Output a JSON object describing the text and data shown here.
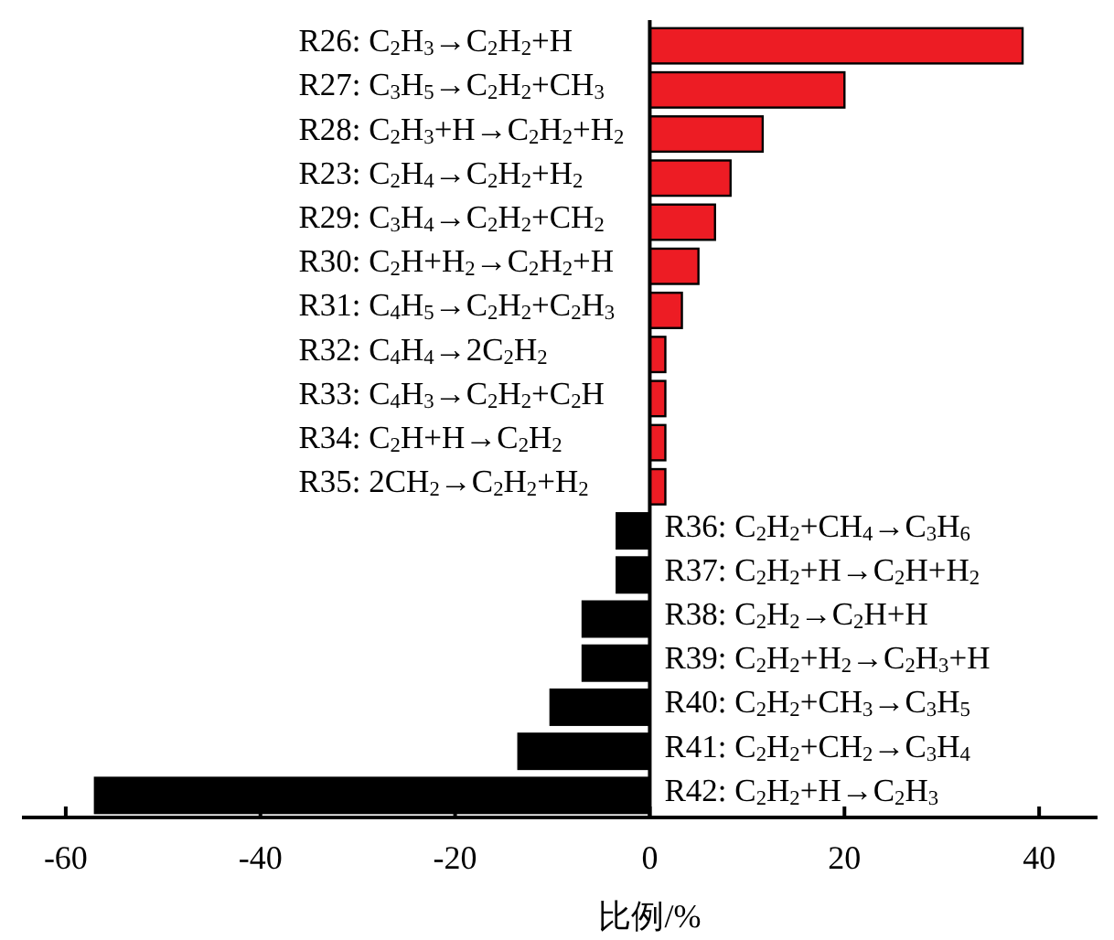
{
  "chart_data": {
    "type": "bar",
    "orientation": "horizontal",
    "xlabel": "比例/%",
    "categories": [
      "R26: C$_{2}$H$_{3}$→C$_{2}$H$_{2}$+H",
      "R27: C$_{3}$H$_{5}$→C$_{2}$H$_{2}$+CH$_{3}$",
      "R28: C$_{2}$H$_{3}$+H→C$_{2}$H$_{2}$+H$_{2}$",
      "R23: C$_{2}$H$_{4}$→C$_{2}$H$_{2}$+H$_{2}$",
      "R29: C$_{3}$H$_{4}$→C$_{2}$H$_{2}$+CH$_{2}$",
      "R30: C$_{2}$H+H$_{2}$→C$_{2}$H$_{2}$+H",
      "R31: C$_{4}$H$_{5}$→C$_{2}$H$_{2}$+C$_{2}$H$_{3}$",
      "R32: C$_{4}$H$_{4}$→2C$_{2}$H$_{2}$",
      "R33: C$_{4}$H$_{3}$→C$_{2}$H$_{2}$+C$_{2}$H",
      "R34: C$_{2}$H+H→C$_{2}$H$_{2}$",
      "R35: 2CH$_{2}$→C$_{2}$H$_{2}$+H$_{2}$",
      "R36: C$_{2}$H$_{2}$+CH$_{4}$→C$_{3}$H$_{6}$",
      "R37: C$_{2}$H$_{2}$+H→C$_{2}$H+H$_{2}$",
      "R38: C$_{2}$H$_{2}$→C$_{2}$H+H",
      "R39: C$_{2}$H$_{2}$+H$_{2}$→C$_{2}$H$_{3}$+H",
      "R40: C$_{2}$H$_{2}$+CH$_{3}$→C$_{3}$H$_{5}$",
      "R41: C$_{2}$H$_{2}$+CH$_{2}$→C$_{3}$H$_{4}$",
      "R42: C$_{2}$H$_{2}$+H→C$_{2}$H$_{3}$"
    ],
    "values": [
      38.3,
      20.0,
      11.6,
      8.3,
      6.7,
      5.0,
      3.3,
      1.6,
      1.6,
      1.6,
      1.6,
      -3.4,
      -3.4,
      -6.9,
      -6.9,
      -10.2,
      -13.5,
      -57.0
    ],
    "colors": [
      "#ed1c24",
      "#ed1c24",
      "#ed1c24",
      "#ed1c24",
      "#ed1c24",
      "#ed1c24",
      "#ed1c24",
      "#ed1c24",
      "#ed1c24",
      "#ed1c24",
      "#ed1c24",
      "#000000",
      "#000000",
      "#000000",
      "#000000",
      "#000000",
      "#000000",
      "#000000"
    ],
    "xlim": [
      -64.5,
      46
    ],
    "xticks": [
      -60,
      -40,
      -20,
      0,
      20,
      40
    ],
    "grid": false
  }
}
